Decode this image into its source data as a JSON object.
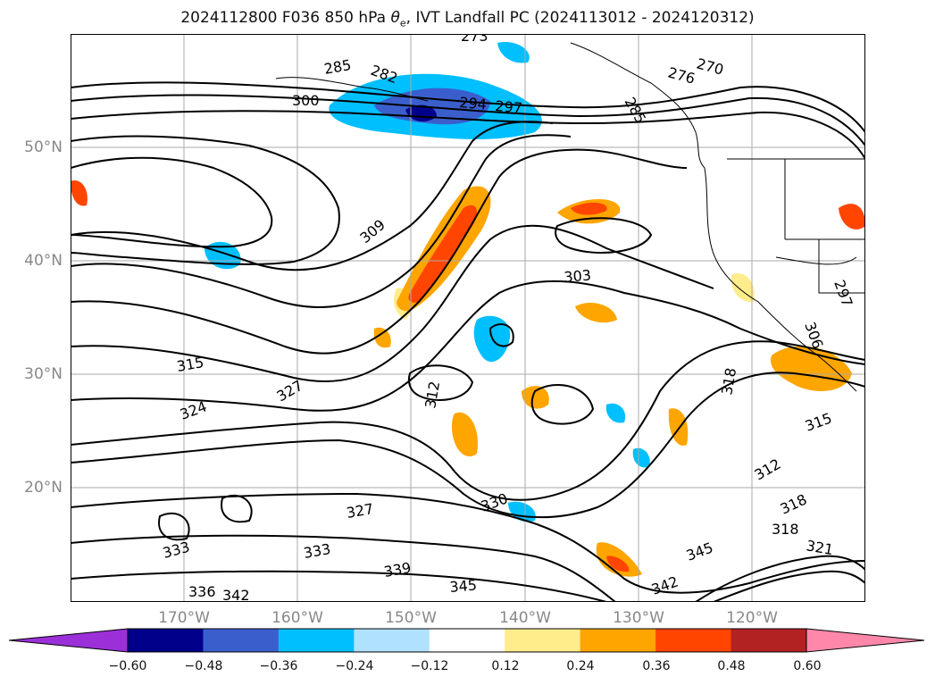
{
  "title": "2024112800 F036 850 hPa θe, IVT Landfall PC (2024113012 - 2024120312)",
  "title_parts": {
    "prefix": "2024112800 F036 850 hPa ",
    "theta": "θ",
    "sub": "e",
    "suffix": ", IVT Landfall PC (2024113012 - 2024120312)"
  },
  "lat_labels": [
    "50°N",
    "40°N",
    "30°N",
    "20°N"
  ],
  "lon_labels": [
    "170°W",
    "160°W",
    "150°W",
    "140°W",
    "130°W",
    "120°W"
  ],
  "colorbar": {
    "ticks": [
      "−0.60",
      "−0.48",
      "−0.36",
      "−0.24",
      "−0.12",
      "0.12",
      "0.24",
      "0.36",
      "0.48",
      "0.60"
    ],
    "colors": [
      "#9b30d8",
      "#00008b",
      "#3a5fcd",
      "#00bfff",
      "#b0e2ff",
      "#ffffff",
      "#ffec8b",
      "#ffa500",
      "#ff4500",
      "#b22222",
      "#ff88aa"
    ]
  },
  "contour_labels": [
    "273",
    "285",
    "282",
    "300",
    "294",
    "297",
    "276",
    "270",
    "285",
    "309",
    "303",
    "315",
    "324",
    "327",
    "312",
    "318",
    "315",
    "312",
    "318",
    "318",
    "321",
    "330",
    "327",
    "333",
    "333",
    "339",
    "336",
    "342",
    "345",
    "345",
    "342",
    "297",
    "306"
  ]
}
